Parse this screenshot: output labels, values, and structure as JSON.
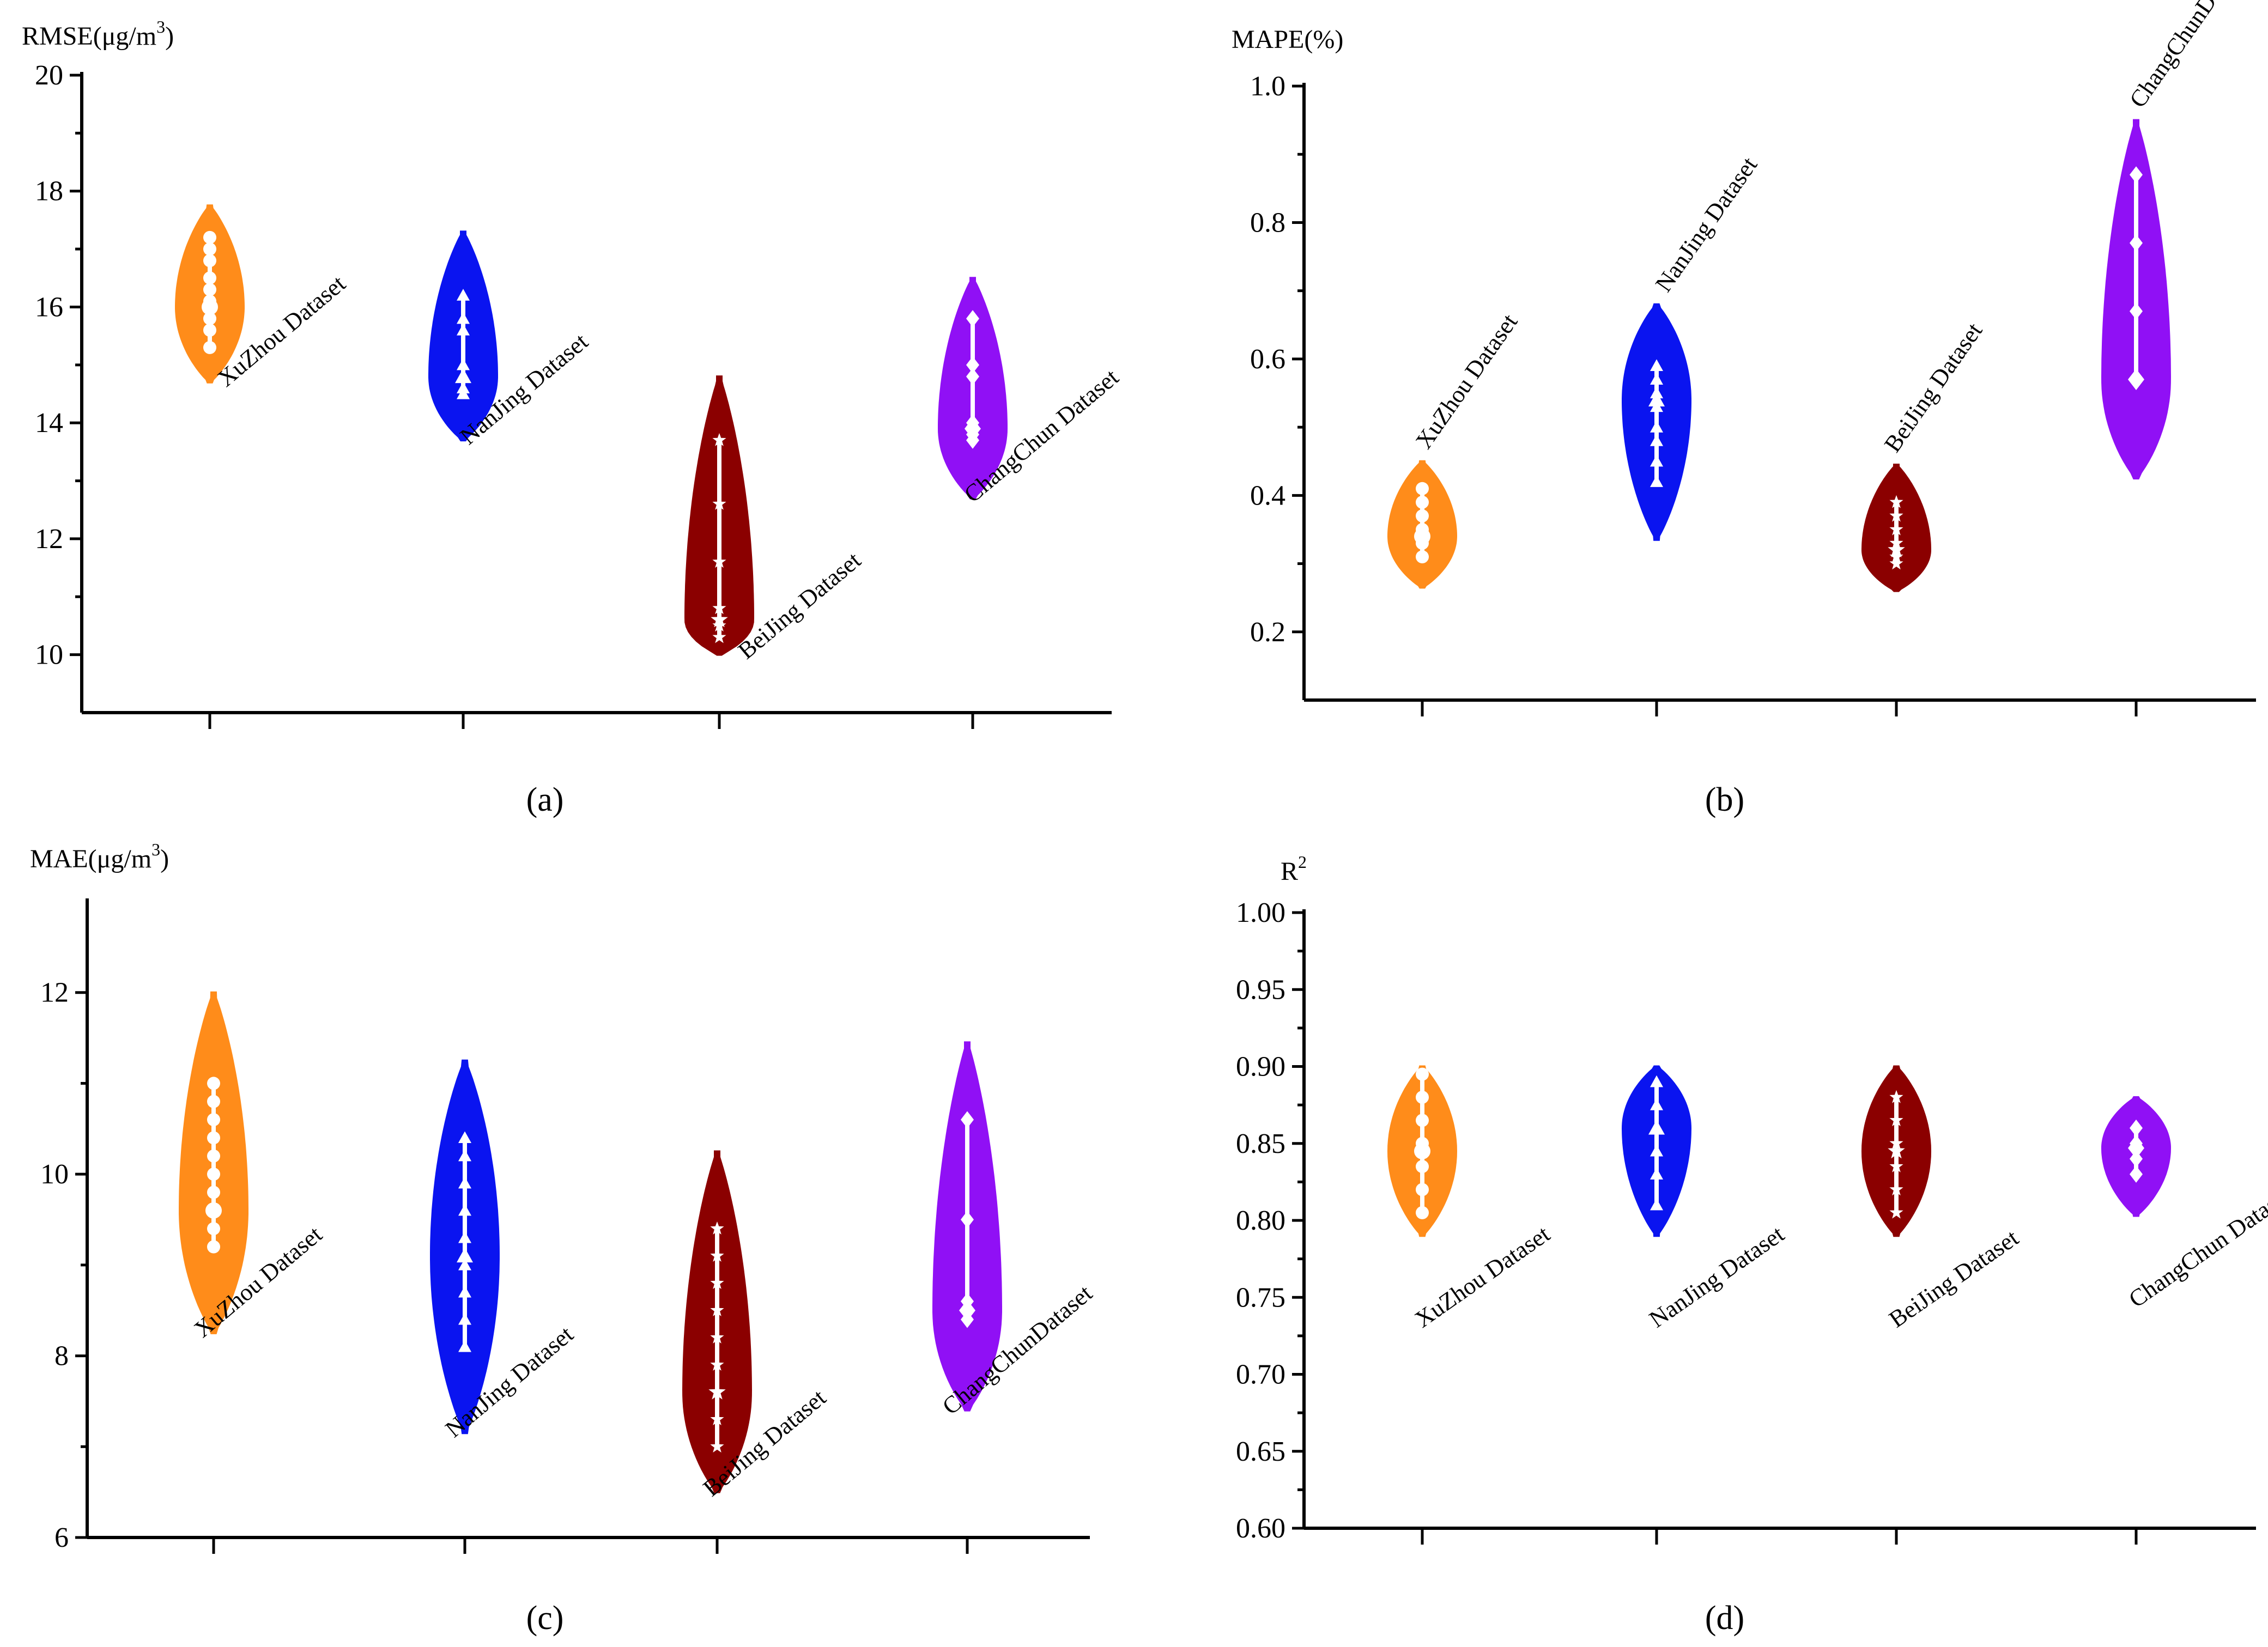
{
  "chart_data": [
    {
      "type": "violin",
      "panel": "a",
      "panel_label": "(a)",
      "ylabel_main": "RMSE(μg/m",
      "ylabel_sup": "3",
      "ylabel_end": ")",
      "ylim": [
        9,
        20
      ],
      "yticks": [
        10,
        12,
        14,
        16,
        18,
        20
      ],
      "ytick_labels": [
        "10",
        "12",
        "14",
        "16",
        "18",
        "20"
      ],
      "categories": [
        "XuZhou Dataset",
        "NanJing Dataset",
        "BeiJing Dataset",
        "ChangChun Dataset"
      ],
      "series": [
        {
          "name": "XuZhou Dataset",
          "color": "#FF8C1A",
          "marker": "circle",
          "min": 14.7,
          "max": 17.75,
          "median": 16.0,
          "points": [
            15.3,
            15.6,
            15.8,
            16.0,
            16.1,
            16.3,
            16.5,
            16.8,
            17.0,
            17.2
          ]
        },
        {
          "name": "NanJing Dataset",
          "color": "#0A14F0",
          "marker": "triangle",
          "min": 13.7,
          "max": 17.3,
          "median": 14.8,
          "points": [
            14.5,
            14.6,
            14.8,
            15.0,
            15.6,
            15.8,
            16.2
          ]
        },
        {
          "name": "BeiJing Dataset",
          "color": "#8B0000",
          "marker": "star",
          "min": 10.0,
          "max": 14.8,
          "median": 10.6,
          "points": [
            10.3,
            10.5,
            10.6,
            10.8,
            11.6,
            12.6,
            13.7
          ]
        },
        {
          "name": "ChangChun Dataset",
          "color": "#9010F5",
          "marker": "diamond",
          "min": 12.7,
          "max": 16.5,
          "median": 13.9,
          "points": [
            13.7,
            13.8,
            13.9,
            14.0,
            14.8,
            15.0,
            15.8
          ]
        }
      ]
    },
    {
      "type": "violin",
      "panel": "b",
      "panel_label": "(b)",
      "ylabel_main": "MAPE(%)",
      "ylabel_sup": "",
      "ylabel_end": "",
      "ylim": [
        0.1,
        1.0
      ],
      "yticks": [
        0.2,
        0.4,
        0.6,
        0.8,
        1.0
      ],
      "ytick_labels": [
        "0.2",
        "0.4",
        "0.6",
        "0.8",
        "1.0"
      ],
      "categories": [
        "XuZhou Dataset",
        "NanJing Dataset",
        "BeiJing Dataset",
        "ChangChunDataset"
      ],
      "series": [
        {
          "name": "XuZhou Dataset",
          "color": "#FF8C1A",
          "marker": "circle",
          "min": 0.265,
          "max": 0.45,
          "median": 0.34,
          "points": [
            0.31,
            0.33,
            0.35,
            0.37,
            0.39,
            0.41
          ]
        },
        {
          "name": "NanJing Dataset",
          "color": "#0A14F0",
          "marker": "triangle",
          "min": 0.335,
          "max": 0.68,
          "median": 0.54,
          "points": [
            0.42,
            0.45,
            0.48,
            0.5,
            0.53,
            0.55,
            0.57,
            0.59
          ]
        },
        {
          "name": "BeiJing Dataset",
          "color": "#8B0000",
          "marker": "star",
          "min": 0.26,
          "max": 0.445,
          "median": 0.32,
          "points": [
            0.3,
            0.31,
            0.32,
            0.33,
            0.35,
            0.37,
            0.39
          ]
        },
        {
          "name": "ChangChunDataset",
          "color": "#9010F5",
          "marker": "diamond",
          "min": 0.425,
          "max": 0.95,
          "median": 0.57,
          "points": [
            0.57,
            0.67,
            0.77,
            0.87
          ]
        }
      ]
    },
    {
      "type": "violin",
      "panel": "c",
      "panel_label": "(c)",
      "ylabel_main": "MAE(μg/m",
      "ylabel_sup": "3",
      "ylabel_end": ")",
      "ylim": [
        6,
        13
      ],
      "yticks": [
        6,
        8,
        10,
        12
      ],
      "ytick_labels": [
        "6",
        "8",
        "10",
        "12"
      ],
      "categories": [
        "XuZhou Dataset",
        "NanJing Dataset",
        "BeiJing Dataset",
        "ChangChunDataset"
      ],
      "series": [
        {
          "name": "XuZhou Dataset",
          "color": "#FF8C1A",
          "marker": "circle",
          "min": 8.25,
          "max": 12.0,
          "median": 9.6,
          "points": [
            9.2,
            9.4,
            9.6,
            9.8,
            10.0,
            10.2,
            10.4,
            10.6,
            10.8,
            11.0
          ]
        },
        {
          "name": "NanJing Dataset",
          "color": "#0A14F0",
          "marker": "triangle",
          "min": 7.15,
          "max": 11.25,
          "median": 9.1,
          "points": [
            8.1,
            8.4,
            8.7,
            9.0,
            9.3,
            9.6,
            9.9,
            10.2,
            10.4
          ]
        },
        {
          "name": "BeiJing Dataset",
          "color": "#8B0000",
          "marker": "star",
          "min": 6.5,
          "max": 10.25,
          "median": 7.6,
          "points": [
            7.0,
            7.3,
            7.6,
            7.9,
            8.2,
            8.5,
            8.8,
            9.1,
            9.4
          ]
        },
        {
          "name": "ChangChunDataset",
          "color": "#9010F5",
          "marker": "diamond",
          "min": 7.4,
          "max": 11.45,
          "median": 8.5,
          "points": [
            8.4,
            8.5,
            8.6,
            9.5,
            10.6
          ]
        }
      ]
    },
    {
      "type": "violin",
      "panel": "d",
      "panel_label": "(d)",
      "ylabel_main": "R",
      "ylabel_sup": "2",
      "ylabel_end": "",
      "ylim": [
        0.6,
        1.0
      ],
      "yticks": [
        0.6,
        0.65,
        0.7,
        0.75,
        0.8,
        0.85,
        0.9,
        0.95,
        1.0
      ],
      "ytick_labels": [
        "0.60",
        "0.65",
        "0.70",
        "0.75",
        "0.80",
        "0.85",
        "0.90",
        "0.95",
        "1.00"
      ],
      "categories": [
        "XuZhou Dataset",
        "NanJing Dataset",
        "BeiJing Dataset",
        "ChangChun Dataset"
      ],
      "series": [
        {
          "name": "XuZhou Dataset",
          "color": "#FF8C1A",
          "marker": "circle",
          "min": 0.79,
          "max": 0.9,
          "median": 0.845,
          "points": [
            0.805,
            0.82,
            0.835,
            0.85,
            0.865,
            0.88,
            0.895
          ]
        },
        {
          "name": "NanJing Dataset",
          "color": "#0A14F0",
          "marker": "triangle",
          "min": 0.79,
          "max": 0.9,
          "median": 0.86,
          "points": [
            0.81,
            0.83,
            0.845,
            0.86,
            0.875,
            0.89
          ]
        },
        {
          "name": "BeiJing Dataset",
          "color": "#8B0000",
          "marker": "star",
          "min": 0.79,
          "max": 0.9,
          "median": 0.845,
          "points": [
            0.805,
            0.82,
            0.835,
            0.85,
            0.865,
            0.88
          ]
        },
        {
          "name": "ChangChun Dataset",
          "color": "#9010F5",
          "marker": "diamond",
          "min": 0.803,
          "max": 0.88,
          "median": 0.847,
          "points": [
            0.83,
            0.84,
            0.85,
            0.86
          ]
        }
      ]
    }
  ]
}
